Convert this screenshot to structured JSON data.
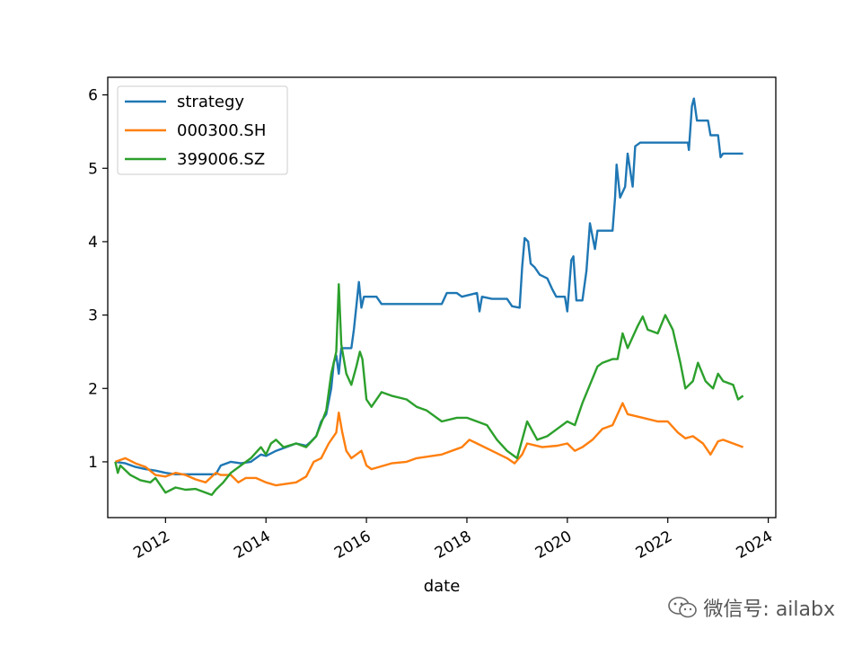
{
  "chart_data": {
    "type": "line",
    "xlabel": "date",
    "ylabel": "",
    "xlim": [
      2010.85,
      2024.15
    ],
    "ylim": [
      0.24,
      6.24
    ],
    "xticks": [
      2012,
      2014,
      2016,
      2018,
      2020,
      2022,
      2024
    ],
    "xtick_labels": [
      "2012",
      "2014",
      "2016",
      "2018",
      "2020",
      "2022",
      "2024"
    ],
    "yticks": [
      1,
      2,
      3,
      4,
      5,
      6
    ],
    "ytick_labels": [
      "1",
      "2",
      "3",
      "4",
      "5",
      "6"
    ],
    "legend_position": "top-left",
    "grid": false,
    "series": [
      {
        "name": "strategy",
        "color": "#1f77b4",
        "points": [
          [
            2011.0,
            1.0
          ],
          [
            2011.2,
            0.98
          ],
          [
            2011.4,
            0.93
          ],
          [
            2011.6,
            0.9
          ],
          [
            2011.8,
            0.88
          ],
          [
            2012.0,
            0.85
          ],
          [
            2012.2,
            0.83
          ],
          [
            2012.5,
            0.83
          ],
          [
            2012.8,
            0.83
          ],
          [
            2013.0,
            0.83
          ],
          [
            2013.1,
            0.95
          ],
          [
            2013.3,
            1.0
          ],
          [
            2013.5,
            0.98
          ],
          [
            2013.7,
            1.0
          ],
          [
            2013.9,
            1.1
          ],
          [
            2014.0,
            1.08
          ],
          [
            2014.2,
            1.15
          ],
          [
            2014.4,
            1.2
          ],
          [
            2014.6,
            1.25
          ],
          [
            2014.8,
            1.22
          ],
          [
            2014.9,
            1.28
          ],
          [
            2015.0,
            1.35
          ],
          [
            2015.1,
            1.55
          ],
          [
            2015.2,
            1.65
          ],
          [
            2015.3,
            2.0
          ],
          [
            2015.35,
            2.35
          ],
          [
            2015.4,
            2.45
          ],
          [
            2015.45,
            2.2
          ],
          [
            2015.5,
            2.55
          ],
          [
            2015.55,
            2.55
          ],
          [
            2015.7,
            2.55
          ],
          [
            2015.75,
            2.8
          ],
          [
            2015.85,
            3.45
          ],
          [
            2015.9,
            3.1
          ],
          [
            2015.95,
            3.25
          ],
          [
            2016.2,
            3.25
          ],
          [
            2016.3,
            3.15
          ],
          [
            2016.6,
            3.15
          ],
          [
            2017.0,
            3.15
          ],
          [
            2017.5,
            3.15
          ],
          [
            2017.6,
            3.3
          ],
          [
            2017.8,
            3.3
          ],
          [
            2017.9,
            3.25
          ],
          [
            2018.2,
            3.3
          ],
          [
            2018.25,
            3.05
          ],
          [
            2018.3,
            3.25
          ],
          [
            2018.5,
            3.22
          ],
          [
            2018.8,
            3.22
          ],
          [
            2018.9,
            3.12
          ],
          [
            2019.05,
            3.1
          ],
          [
            2019.1,
            3.65
          ],
          [
            2019.15,
            4.05
          ],
          [
            2019.22,
            4.0
          ],
          [
            2019.27,
            3.7
          ],
          [
            2019.35,
            3.65
          ],
          [
            2019.45,
            3.55
          ],
          [
            2019.6,
            3.5
          ],
          [
            2019.7,
            3.35
          ],
          [
            2019.78,
            3.25
          ],
          [
            2019.95,
            3.25
          ],
          [
            2020.0,
            3.05
          ],
          [
            2020.08,
            3.75
          ],
          [
            2020.12,
            3.8
          ],
          [
            2020.18,
            3.2
          ],
          [
            2020.3,
            3.2
          ],
          [
            2020.38,
            3.6
          ],
          [
            2020.45,
            4.25
          ],
          [
            2020.55,
            3.9
          ],
          [
            2020.6,
            4.15
          ],
          [
            2020.9,
            4.15
          ],
          [
            2020.95,
            4.6
          ],
          [
            2020.98,
            5.05
          ],
          [
            2021.05,
            4.6
          ],
          [
            2021.15,
            4.75
          ],
          [
            2021.2,
            5.2
          ],
          [
            2021.3,
            4.75
          ],
          [
            2021.35,
            5.3
          ],
          [
            2021.45,
            5.35
          ],
          [
            2021.8,
            5.35
          ],
          [
            2022.1,
            5.35
          ],
          [
            2022.4,
            5.35
          ],
          [
            2022.42,
            5.25
          ],
          [
            2022.48,
            5.85
          ],
          [
            2022.52,
            5.95
          ],
          [
            2022.58,
            5.65
          ],
          [
            2022.8,
            5.65
          ],
          [
            2022.85,
            5.45
          ],
          [
            2023.0,
            5.45
          ],
          [
            2023.05,
            5.15
          ],
          [
            2023.1,
            5.2
          ],
          [
            2023.5,
            5.2
          ]
        ]
      },
      {
        "name": "000300.SH",
        "color": "#ff7f0e",
        "points": [
          [
            2011.0,
            1.0
          ],
          [
            2011.2,
            1.05
          ],
          [
            2011.4,
            0.98
          ],
          [
            2011.6,
            0.93
          ],
          [
            2011.8,
            0.82
          ],
          [
            2012.0,
            0.8
          ],
          [
            2012.2,
            0.85
          ],
          [
            2012.4,
            0.82
          ],
          [
            2012.6,
            0.76
          ],
          [
            2012.8,
            0.72
          ],
          [
            2013.0,
            0.85
          ],
          [
            2013.1,
            0.82
          ],
          [
            2013.3,
            0.82
          ],
          [
            2013.45,
            0.72
          ],
          [
            2013.6,
            0.78
          ],
          [
            2013.8,
            0.78
          ],
          [
            2014.0,
            0.72
          ],
          [
            2014.2,
            0.68
          ],
          [
            2014.4,
            0.7
          ],
          [
            2014.6,
            0.72
          ],
          [
            2014.8,
            0.8
          ],
          [
            2014.95,
            1.0
          ],
          [
            2015.1,
            1.05
          ],
          [
            2015.25,
            1.25
          ],
          [
            2015.4,
            1.4
          ],
          [
            2015.45,
            1.67
          ],
          [
            2015.52,
            1.4
          ],
          [
            2015.6,
            1.15
          ],
          [
            2015.7,
            1.05
          ],
          [
            2015.8,
            1.1
          ],
          [
            2015.9,
            1.15
          ],
          [
            2016.0,
            0.95
          ],
          [
            2016.1,
            0.9
          ],
          [
            2016.5,
            0.98
          ],
          [
            2016.8,
            1.0
          ],
          [
            2017.0,
            1.05
          ],
          [
            2017.5,
            1.1
          ],
          [
            2017.9,
            1.2
          ],
          [
            2018.05,
            1.3
          ],
          [
            2018.2,
            1.25
          ],
          [
            2018.5,
            1.15
          ],
          [
            2018.8,
            1.05
          ],
          [
            2018.95,
            0.98
          ],
          [
            2019.1,
            1.1
          ],
          [
            2019.2,
            1.25
          ],
          [
            2019.5,
            1.2
          ],
          [
            2019.8,
            1.22
          ],
          [
            2020.0,
            1.25
          ],
          [
            2020.15,
            1.15
          ],
          [
            2020.3,
            1.2
          ],
          [
            2020.5,
            1.3
          ],
          [
            2020.7,
            1.45
          ],
          [
            2020.9,
            1.5
          ],
          [
            2021.1,
            1.8
          ],
          [
            2021.2,
            1.65
          ],
          [
            2021.5,
            1.6
          ],
          [
            2021.8,
            1.55
          ],
          [
            2022.0,
            1.55
          ],
          [
            2022.2,
            1.4
          ],
          [
            2022.35,
            1.32
          ],
          [
            2022.5,
            1.35
          ],
          [
            2022.7,
            1.25
          ],
          [
            2022.8,
            1.15
          ],
          [
            2022.85,
            1.1
          ],
          [
            2023.0,
            1.28
          ],
          [
            2023.1,
            1.3
          ],
          [
            2023.3,
            1.25
          ],
          [
            2023.5,
            1.2
          ]
        ]
      },
      {
        "name": "399006.SZ",
        "color": "#2ca02c",
        "points": [
          [
            2011.0,
            1.0
          ],
          [
            2011.05,
            0.85
          ],
          [
            2011.1,
            0.95
          ],
          [
            2011.3,
            0.82
          ],
          [
            2011.5,
            0.75
          ],
          [
            2011.7,
            0.72
          ],
          [
            2011.8,
            0.78
          ],
          [
            2012.0,
            0.58
          ],
          [
            2012.2,
            0.65
          ],
          [
            2012.4,
            0.62
          ],
          [
            2012.6,
            0.63
          ],
          [
            2012.8,
            0.58
          ],
          [
            2012.92,
            0.55
          ],
          [
            2013.0,
            0.62
          ],
          [
            2013.15,
            0.72
          ],
          [
            2013.3,
            0.85
          ],
          [
            2013.5,
            0.95
          ],
          [
            2013.7,
            1.05
          ],
          [
            2013.9,
            1.2
          ],
          [
            2014.0,
            1.1
          ],
          [
            2014.1,
            1.25
          ],
          [
            2014.2,
            1.3
          ],
          [
            2014.35,
            1.2
          ],
          [
            2014.6,
            1.25
          ],
          [
            2014.8,
            1.2
          ],
          [
            2015.0,
            1.35
          ],
          [
            2015.2,
            1.7
          ],
          [
            2015.3,
            2.2
          ],
          [
            2015.4,
            2.5
          ],
          [
            2015.45,
            3.42
          ],
          [
            2015.5,
            2.6
          ],
          [
            2015.6,
            2.2
          ],
          [
            2015.7,
            2.05
          ],
          [
            2015.8,
            2.3
          ],
          [
            2015.87,
            2.5
          ],
          [
            2015.92,
            2.4
          ],
          [
            2016.0,
            1.85
          ],
          [
            2016.1,
            1.75
          ],
          [
            2016.3,
            1.95
          ],
          [
            2016.5,
            1.9
          ],
          [
            2016.8,
            1.85
          ],
          [
            2017.0,
            1.75
          ],
          [
            2017.2,
            1.7
          ],
          [
            2017.5,
            1.55
          ],
          [
            2017.8,
            1.6
          ],
          [
            2018.0,
            1.6
          ],
          [
            2018.2,
            1.55
          ],
          [
            2018.4,
            1.5
          ],
          [
            2018.6,
            1.3
          ],
          [
            2018.8,
            1.15
          ],
          [
            2019.0,
            1.05
          ],
          [
            2019.1,
            1.3
          ],
          [
            2019.2,
            1.55
          ],
          [
            2019.4,
            1.3
          ],
          [
            2019.6,
            1.35
          ],
          [
            2019.8,
            1.45
          ],
          [
            2020.0,
            1.55
          ],
          [
            2020.15,
            1.5
          ],
          [
            2020.3,
            1.8
          ],
          [
            2020.45,
            2.05
          ],
          [
            2020.6,
            2.3
          ],
          [
            2020.7,
            2.35
          ],
          [
            2020.9,
            2.4
          ],
          [
            2021.0,
            2.4
          ],
          [
            2021.1,
            2.75
          ],
          [
            2021.2,
            2.55
          ],
          [
            2021.4,
            2.85
          ],
          [
            2021.5,
            2.98
          ],
          [
            2021.6,
            2.8
          ],
          [
            2021.8,
            2.75
          ],
          [
            2021.95,
            3.0
          ],
          [
            2022.1,
            2.8
          ],
          [
            2022.25,
            2.35
          ],
          [
            2022.35,
            2.0
          ],
          [
            2022.5,
            2.1
          ],
          [
            2022.6,
            2.35
          ],
          [
            2022.75,
            2.1
          ],
          [
            2022.9,
            2.0
          ],
          [
            2023.0,
            2.2
          ],
          [
            2023.1,
            2.1
          ],
          [
            2023.3,
            2.05
          ],
          [
            2023.4,
            1.85
          ],
          [
            2023.5,
            1.9
          ]
        ]
      }
    ]
  },
  "watermark": {
    "text": "微信号: ailabx",
    "icon": "wechat-icon"
  }
}
